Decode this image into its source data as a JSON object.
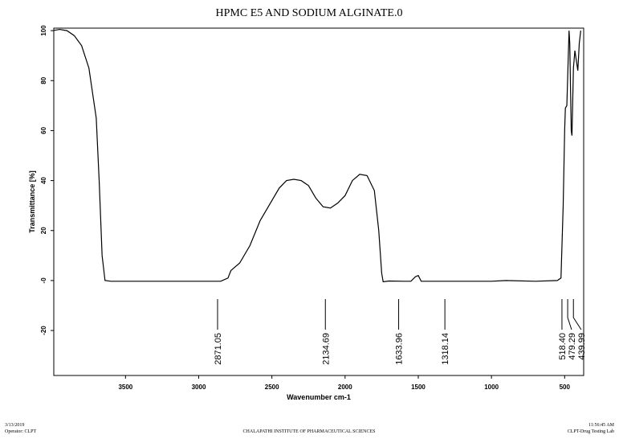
{
  "chart_data": {
    "type": "line",
    "title": "HPMC E5 AND SODIUM ALGINATE.0",
    "x_label": "Wavenumber cm-1",
    "y_label": "Transmittance [%]",
    "xlim": [
      3990,
      370
    ],
    "ylim": [
      -38,
      101
    ],
    "xticks": [
      3500,
      3000,
      2500,
      2000,
      1500,
      1000,
      500
    ],
    "yticks": [
      100,
      80,
      60,
      40,
      20,
      {
        "value": 0,
        "label": "-0"
      },
      -20
    ],
    "series": [
      {
        "color": "#000000",
        "x": [
          4000,
          3950,
          3900,
          3850,
          3800,
          3750,
          3700,
          3680,
          3660,
          3640,
          3600,
          3400,
          3000,
          2850,
          2800,
          2780,
          2720,
          2650,
          2580,
          2500,
          2450,
          2400,
          2350,
          2300,
          2250,
          2200,
          2150,
          2100,
          2050,
          2000,
          1950,
          1900,
          1850,
          1800,
          1770,
          1750,
          1740,
          1700,
          1600,
          1550,
          1520,
          1500,
          1480,
          1400,
          1000,
          900,
          700,
          550,
          525,
          510,
          500,
          495,
          485,
          470,
          465,
          455,
          450,
          440,
          430,
          420,
          410,
          400,
          390
        ],
        "values": [
          100,
          100.5,
          100,
          98,
          94,
          85,
          65,
          40,
          10,
          0,
          -0.3,
          -0.3,
          -0.3,
          -0.3,
          1,
          4,
          7,
          14,
          24,
          32,
          37,
          40,
          40.5,
          40,
          38,
          33,
          29.5,
          29,
          31,
          34,
          40,
          42.5,
          42,
          36,
          20,
          3,
          -0.5,
          -0.2,
          -0.3,
          -0.3,
          1.5,
          2,
          -0.3,
          -0.3,
          -0.3,
          0,
          -0.3,
          0,
          1,
          30,
          60,
          69,
          70,
          100,
          95,
          60,
          58,
          85,
          92,
          88,
          84,
          95,
          100
        ]
      }
    ],
    "peak_labels": [
      2871.05,
      2134.69,
      1633.96,
      1318.14,
      {
        "value": 518.4,
        "label": "518.40"
      },
      479.29,
      439.99
    ]
  },
  "footer": {
    "date": "3/13/2019",
    "operator": "Operator: CLPT",
    "institute": "CHALAPATHI INSTITUTE OF PHARMACEUTICAL SCIENCES",
    "time": "11:56:45 AM",
    "lab": "CLPT-Drug Testing Lab"
  }
}
